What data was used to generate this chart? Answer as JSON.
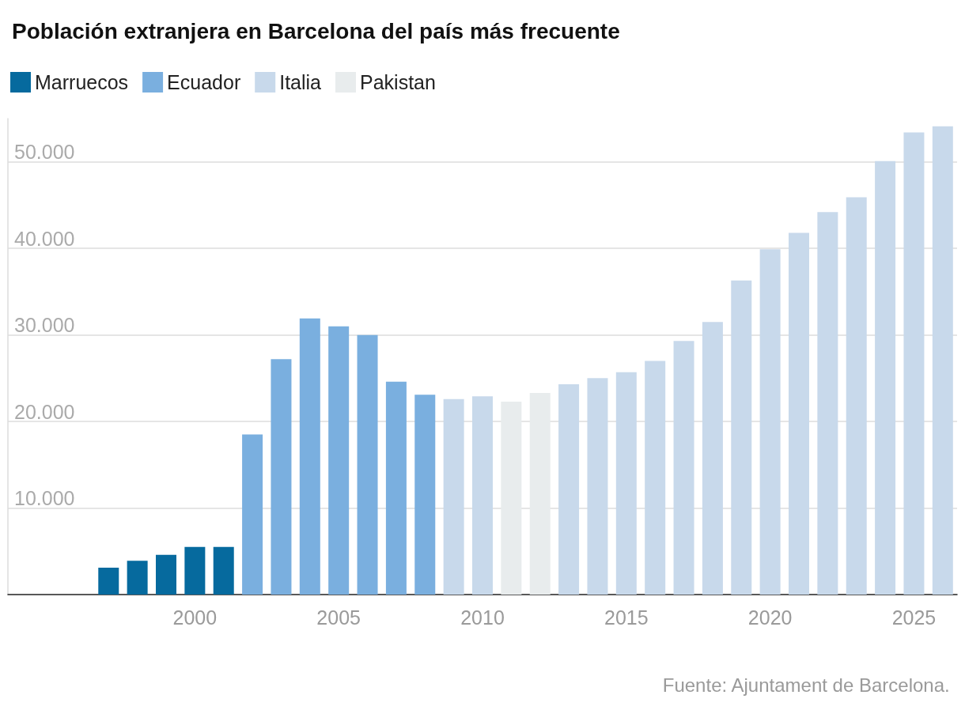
{
  "chart_data": {
    "type": "bar",
    "title": "Población extranjera en Barcelona del país más frecuente",
    "x": [
      1997,
      1998,
      1999,
      2000,
      2001,
      2002,
      2003,
      2004,
      2005,
      2006,
      2007,
      2008,
      2009,
      2010,
      2011,
      2012,
      2013,
      2014,
      2015,
      2016,
      2017,
      2018,
      2019,
      2020,
      2021,
      2022,
      2023,
      2024,
      2025,
      2026
    ],
    "series": [
      {
        "name": "Marruecos",
        "color": "#066a9e",
        "values": [
          3100,
          3900,
          4600,
          5500,
          5500,
          null,
          null,
          null,
          null,
          null,
          null,
          null,
          null,
          null,
          null,
          null,
          null,
          null,
          null,
          null,
          null,
          null,
          null,
          null,
          null,
          null,
          null,
          null,
          null,
          null
        ]
      },
      {
        "name": "Ecuador",
        "color": "#7aafdf",
        "values": [
          null,
          null,
          null,
          null,
          null,
          18500,
          27200,
          31900,
          31000,
          30000,
          24600,
          23100,
          null,
          null,
          null,
          null,
          null,
          null,
          null,
          null,
          null,
          null,
          null,
          null,
          null,
          null,
          null,
          null,
          null,
          null
        ]
      },
      {
        "name": "Italia",
        "color": "#c8d9eb",
        "values": [
          null,
          null,
          null,
          null,
          null,
          null,
          null,
          null,
          null,
          null,
          null,
          null,
          22600,
          22900,
          null,
          null,
          24300,
          25000,
          25700,
          27000,
          29300,
          31500,
          36300,
          39900,
          41800,
          44200,
          45900,
          50100,
          53400,
          54100
        ]
      },
      {
        "name": "Pakistan",
        "color": "#e8eced",
        "values": [
          null,
          null,
          null,
          null,
          null,
          null,
          null,
          null,
          null,
          null,
          null,
          null,
          null,
          null,
          22300,
          23300,
          null,
          null,
          null,
          null,
          null,
          null,
          null,
          null,
          null,
          null,
          null,
          null,
          null,
          null
        ]
      }
    ],
    "xlim": [
      1993.5,
      2026.5
    ],
    "xticks": [
      2000,
      2005,
      2010,
      2015,
      2020,
      2025
    ],
    "yticks": [
      {
        "value": 10000,
        "label": "10.000"
      },
      {
        "value": 20000,
        "label": "20.000"
      },
      {
        "value": 30000,
        "label": "30.000"
      },
      {
        "value": 40000,
        "label": "40.000"
      },
      {
        "value": 50000,
        "label": "50.000"
      }
    ],
    "ylim": [
      0,
      55000
    ],
    "grid": "y",
    "legend": "top left",
    "annotations": [
      "Fuente: Ajuntament de Barcelona."
    ]
  }
}
